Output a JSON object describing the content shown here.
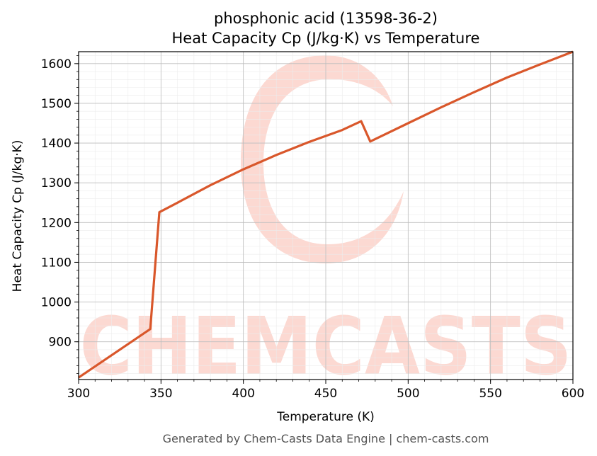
{
  "chart_data": {
    "type": "line",
    "title_line1": "phosphonic acid (13598-36-2)",
    "title_line2": "Heat Capacity Cp (J/kg·K) vs Temperature",
    "xlabel": "Temperature (K)",
    "ylabel": "Heat Capacity Cp (J/kg·K)",
    "xlim": [
      300,
      600
    ],
    "ylim": [
      805,
      1630
    ],
    "xticks": [
      300,
      350,
      400,
      450,
      500,
      550,
      600
    ],
    "yticks": [
      900,
      1000,
      1100,
      1200,
      1300,
      1400,
      1500,
      1600
    ],
    "xtick_labels": [
      "300",
      "350",
      "400",
      "450",
      "500",
      "550",
      "600"
    ],
    "ytick_labels": [
      "900",
      "1000",
      "1100",
      "1200",
      "1300",
      "1400",
      "1500",
      "1600"
    ],
    "grid": true,
    "line_color": "#d9572b",
    "series": [
      {
        "x": [
          300,
          343.5,
          349,
          360,
          380,
          400,
          420,
          440,
          460,
          471.5,
          477,
          500,
          520,
          540,
          560,
          580,
          600
        ],
        "y": [
          810,
          932,
          1226,
          1250,
          1294,
          1334,
          1370,
          1403,
          1433,
          1455,
          1404,
          1450,
          1490,
          1528,
          1565,
          1598,
          1630
        ]
      }
    ]
  },
  "watermark": {
    "text": "CHEMCASTS"
  },
  "footer": "Generated by Chem-Casts Data Engine | chem-casts.com"
}
